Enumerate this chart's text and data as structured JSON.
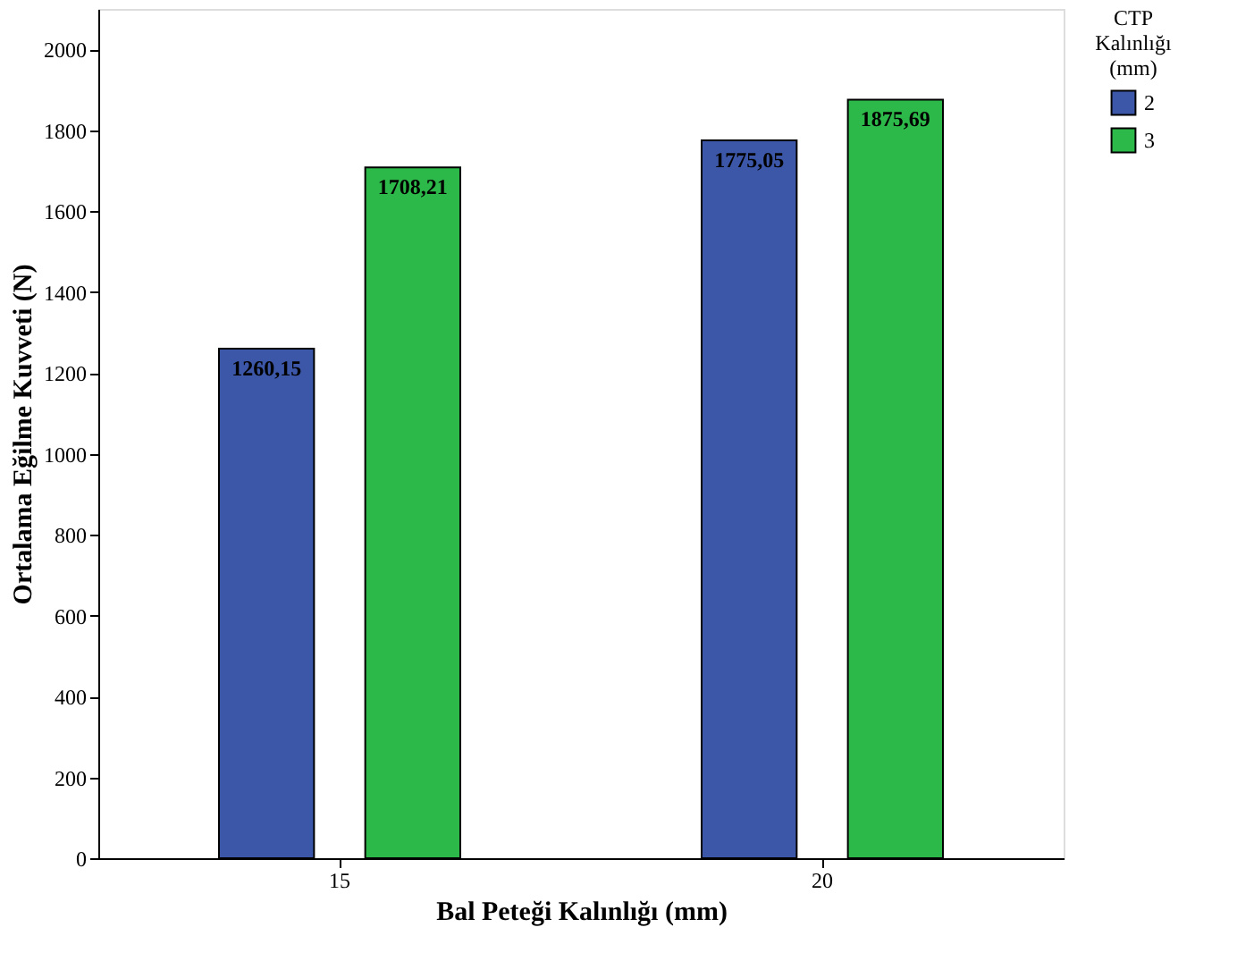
{
  "chart_data": {
    "type": "bar",
    "xlabel": "Bal Peteği Kalınlığı (mm)",
    "ylabel": "Ortalama Eğilme Kuvveti (N)",
    "legend_title": "CTP Kalınlığı (mm)",
    "categories": [
      "15",
      "20"
    ],
    "series": [
      {
        "name": "2",
        "color": "#3c56a8",
        "values": [
          1260.15,
          1775.05
        ],
        "value_labels": [
          "1260,15",
          "1775,05"
        ]
      },
      {
        "name": "3",
        "color": "#2db84a",
        "values": [
          1708.21,
          1875.69
        ],
        "value_labels": [
          "1708,21",
          "1875,69"
        ]
      }
    ],
    "ylim": [
      0,
      2100
    ],
    "yticks": [
      0,
      200,
      400,
      600,
      800,
      1000,
      1200,
      1400,
      1600,
      1800,
      2000
    ],
    "grid": false,
    "legend": "top right"
  }
}
